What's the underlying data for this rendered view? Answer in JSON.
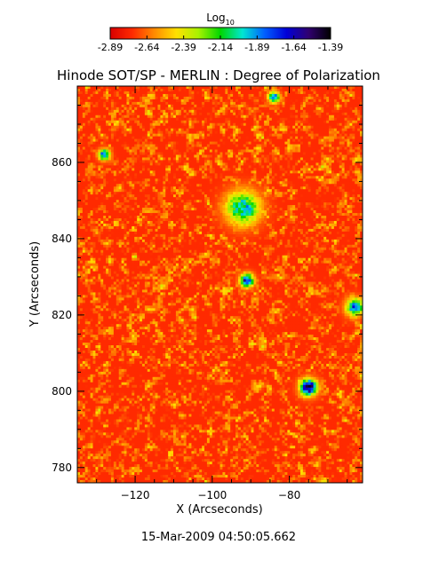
{
  "chart_data": {
    "type": "heatmap",
    "title": "Hinode SOT/SP - MERLIN : Degree of Polarization",
    "xlabel": "X (Arcseconds)",
    "ylabel": "Y (Arcseconds)",
    "xlim": [
      -135,
      -61
    ],
    "ylim": [
      776,
      880
    ],
    "x_ticks": [
      -120,
      -100,
      -80
    ],
    "y_ticks": [
      780,
      800,
      820,
      840,
      860
    ],
    "colorbar": {
      "title_base": "Log",
      "title_sub": "10",
      "range": [
        -2.89,
        -1.39
      ],
      "tick_values": [
        -2.89,
        -2.64,
        -2.39,
        -2.14,
        -1.89,
        -1.64,
        -1.39
      ],
      "tick_labels": [
        "-2.89",
        "-2.64",
        "-2.39",
        "-2.14",
        "-1.89",
        "-1.64",
        "-1.39"
      ],
      "colors": [
        "#d80000",
        "#ff2a00",
        "#ff8a00",
        "#ffe000",
        "#a8f200",
        "#00d600",
        "#00e6d2",
        "#0060ff",
        "#0000d8",
        "#300070",
        "#000000"
      ]
    },
    "field_statistics": {
      "median": -2.74,
      "spread": 0.17,
      "bright_regions": [
        {
          "x": -92,
          "y": 848,
          "peak": -1.95,
          "sigma": 3.0
        },
        {
          "x": -75,
          "y": 801,
          "peak": -1.5,
          "sigma": 1.5
        },
        {
          "x": -91,
          "y": 829,
          "peak": -1.62,
          "sigma": 1.2
        },
        {
          "x": -63,
          "y": 822,
          "peak": -1.85,
          "sigma": 1.6
        },
        {
          "x": -128,
          "y": 862,
          "peak": -1.8,
          "sigma": 1.0
        },
        {
          "x": -84,
          "y": 877,
          "peak": -1.8,
          "sigma": 1.0
        }
      ]
    },
    "grid": false,
    "legend": "colorbar-top"
  },
  "footer": {
    "timestamp": "15-Mar-2009 04:50:05.662"
  }
}
